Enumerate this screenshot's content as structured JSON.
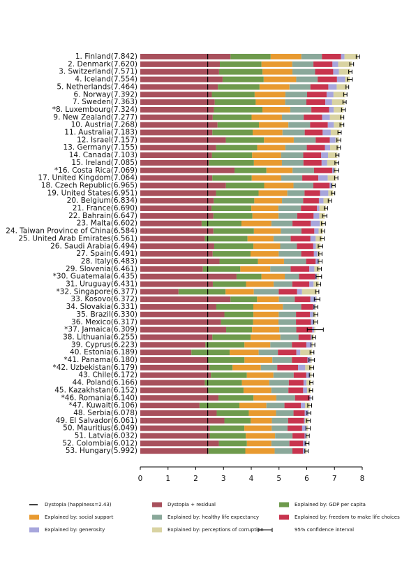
{
  "chart_data": {
    "type": "stacked-barh",
    "categories": [
      "1. Finland(7.842)",
      "2. Denmark(7.620)",
      "3. Switzerland(7.571)",
      "4. Iceland(7.554)",
      "5. Netherlands(7.464)",
      "6. Norway(7.392)",
      "7. Sweden(7.363)",
      "*8. Luxembourg(7.324)",
      "9. New Zealand(7.277)",
      "10. Austria(7.268)",
      "11. Australia(7.183)",
      "12. Israel(7.157)",
      "13. Germany(7.155)",
      "14. Canada(7.103)",
      "15. Ireland(7.085)",
      "*16. Costa Rica(7.069)",
      "17. United Kingdom(7.064)",
      "18. Czech Republic(6.965)",
      "19. United States(6.951)",
      "20. Belgium(6.834)",
      "21. France(6.690)",
      "22. Bahrain(6.647)",
      "23. Malta(6.602)",
      "24. Taiwan Province of China(6.584)",
      "25. United Arab Emirates(6.561)",
      "26. Saudi Arabia(6.494)",
      "27. Spain(6.491)",
      "28. Italy(6.483)",
      "29. Slovenia(6.461)",
      "*30. Guatemala(6.435)",
      "31. Uruguay(6.431)",
      "*32. Singapore(6.377)",
      "33. Kosovo(6.372)",
      "34. Slovakia(6.331)",
      "35. Brazil(6.330)",
      "36. Mexico(6.317)",
      "*37. Jamaica(6.309)",
      "38. Lithuania(6.255)",
      "39. Cyprus(6.223)",
      "40. Estonia(6.189)",
      "*41. Panama(6.180)",
      "*42. Uzbekistan(6.179)",
      "43. Chile(6.172)",
      "44. Poland(6.166)",
      "45. Kazakhstan(6.152)",
      "*46. Romania(6.140)",
      "*47. Kuwait(6.106)",
      "48. Serbia(6.078)",
      "49. El Salvador(6.061)",
      "50. Mauritius(6.049)",
      "51. Latvia(6.032)",
      "52. Colombia(6.012)",
      "53. Hungary(5.992)"
    ],
    "series": [
      {
        "name": "Dystopia + residual",
        "color": "#a8505c",
        "values": [
          3.253,
          2.868,
          2.84,
          2.967,
          2.798,
          2.58,
          2.683,
          2.652,
          2.612,
          2.785,
          2.598,
          3.083,
          2.735,
          2.585,
          2.468,
          3.397,
          2.596,
          3.089,
          2.731,
          2.647,
          2.568,
          2.636,
          2.212,
          2.634,
          2.324,
          2.665,
          2.61,
          2.855,
          2.257,
          3.47,
          2.615,
          1.379,
          3.252,
          2.741,
          3.032,
          2.913,
          3.095,
          2.599,
          2.348,
          1.843,
          2.439,
          2.497,
          2.546,
          2.324,
          2.447,
          2.819,
          2.135,
          2.754,
          3.032,
          2.514,
          2.503,
          2.832,
          2.457
        ]
      },
      {
        "name": "Explained by: GDP per capita",
        "color": "#6e9a4c",
        "values": [
          1.446,
          1.502,
          1.566,
          1.482,
          1.501,
          1.543,
          1.478,
          1.751,
          1.4,
          1.492,
          1.453,
          1.376,
          1.48,
          1.447,
          1.629,
          1.15,
          1.423,
          1.376,
          1.533,
          1.463,
          1.435,
          1.407,
          1.435,
          1.463,
          1.543,
          1.413,
          1.364,
          1.388,
          1.349,
          0.899,
          1.196,
          1.695,
          0.957,
          1.334,
          1.046,
          1.153,
          0.935,
          1.38,
          1.406,
          1.38,
          1.317,
          0.83,
          1.296,
          1.34,
          1.275,
          1.263,
          1.438,
          1.157,
          0.95,
          1.238,
          1.299,
          1.011,
          1.329
        ]
      },
      {
        "name": "Explained by: social support",
        "color": "#e89a30",
        "values": [
          1.106,
          1.108,
          1.079,
          1.172,
          1.079,
          1.108,
          1.062,
          1.003,
          1.094,
          1.062,
          1.076,
          1.074,
          1.015,
          1.044,
          1.009,
          0.941,
          1.062,
          1.058,
          1.036,
          0.998,
          0.975,
          0.943,
          1.08,
          0.968,
          0.936,
          0.966,
          1.016,
          0.938,
          1.08,
          0.839,
          0.998,
          1.019,
          0.789,
          1.064,
          0.912,
          0.916,
          0.98,
          1.07,
          0.933,
          1.044,
          1.004,
          1.02,
          0.958,
          0.985,
          1.002,
          0.822,
          0.974,
          0.983,
          0.762,
          0.986,
          1.057,
          0.883,
          1.058
        ]
      },
      {
        "name": "Explained by: healthy life expectancy",
        "color": "#8aa89a",
        "values": [
          0.741,
          0.763,
          0.816,
          0.772,
          0.753,
          0.782,
          0.763,
          0.76,
          0.785,
          0.782,
          0.801,
          0.788,
          0.772,
          0.798,
          0.775,
          0.774,
          0.757,
          0.715,
          0.621,
          0.762,
          0.814,
          0.67,
          0.759,
          0.745,
          0.62,
          0.599,
          0.811,
          0.796,
          0.736,
          0.512,
          0.671,
          0.897,
          0.569,
          0.662,
          0.623,
          0.63,
          0.614,
          0.654,
          0.779,
          0.695,
          0.705,
          0.59,
          0.729,
          0.705,
          0.615,
          0.675,
          0.65,
          0.63,
          0.585,
          0.571,
          0.628,
          0.65,
          0.64
        ]
      },
      {
        "name": "Explained by: freedom to make life choices",
        "color": "#c8344e",
        "values": [
          0.691,
          0.686,
          0.653,
          0.698,
          0.647,
          0.703,
          0.685,
          0.639,
          0.665,
          0.64,
          0.647,
          0.509,
          0.652,
          0.648,
          0.656,
          0.661,
          0.58,
          0.588,
          0.557,
          0.569,
          0.578,
          0.592,
          0.66,
          0.463,
          0.711,
          0.593,
          0.458,
          0.345,
          0.67,
          0.582,
          0.614,
          0.664,
          0.564,
          0.43,
          0.507,
          0.538,
          0.575,
          0.44,
          0.52,
          0.665,
          0.56,
          0.749,
          0.456,
          0.531,
          0.532,
          0.522,
          0.594,
          0.403,
          0.571,
          0.525,
          0.436,
          0.493,
          0.379
        ]
      },
      {
        "name": "Explained by: generosity",
        "color": "#a7a6dc",
        "values": [
          0.124,
          0.208,
          0.204,
          0.293,
          0.302,
          0.249,
          0.244,
          0.166,
          0.276,
          0.215,
          0.291,
          0.208,
          0.19,
          0.246,
          0.201,
          0.074,
          0.34,
          0.089,
          0.3,
          0.164,
          0.088,
          0.203,
          0.326,
          0.155,
          0.189,
          0.094,
          0.128,
          0.113,
          0.183,
          0.067,
          0.152,
          0.176,
          0.217,
          0.068,
          0.106,
          0.102,
          0.07,
          0.034,
          0.195,
          0.142,
          0.112,
          0.26,
          0.137,
          0.105,
          0.143,
          0.036,
          0.148,
          0.129,
          0.036,
          0.161,
          0.072,
          0.111,
          0.073
        ]
      },
      {
        "name": "Explained by: perceptions of corruption",
        "color": "#d9d3a2",
        "values": [
          0.481,
          0.485,
          0.413,
          0.17,
          0.384,
          0.427,
          0.448,
          0.353,
          0.445,
          0.292,
          0.317,
          0.119,
          0.311,
          0.335,
          0.347,
          0.072,
          0.306,
          0.05,
          0.173,
          0.231,
          0.232,
          0.196,
          0.13,
          0.156,
          0.238,
          0.164,
          0.104,
          0.048,
          0.186,
          0.066,
          0.185,
          0.547,
          0.024,
          0.032,
          0.104,
          0.065,
          0.04,
          0.078,
          0.042,
          0.42,
          0.043,
          0.233,
          0.05,
          0.176,
          0.138,
          0.003,
          0.167,
          0.022,
          0.125,
          0.054,
          0.037,
          0.032,
          0.056
        ]
      }
    ],
    "errors": [
      0.06,
      0.07,
      0.06,
      0.09,
      0.05,
      0.06,
      0.06,
      0.07,
      0.06,
      0.07,
      0.06,
      0.07,
      0.06,
      0.06,
      0.07,
      0.08,
      0.06,
      0.06,
      0.06,
      0.06,
      0.06,
      0.08,
      0.07,
      0.06,
      0.07,
      0.08,
      0.06,
      0.07,
      0.07,
      0.1,
      0.07,
      0.06,
      0.1,
      0.07,
      0.07,
      0.07,
      0.29,
      0.06,
      0.07,
      0.07,
      0.1,
      0.07,
      0.08,
      0.06,
      0.06,
      0.07,
      0.07,
      0.07,
      0.07,
      0.08,
      0.06,
      0.07,
      0.06
    ],
    "error_label": "95% confidence interval",
    "dystopia": {
      "label": "Dystopia (happiness=2.43)",
      "value": 2.43
    },
    "xlim": [
      -0.2,
      8.4
    ],
    "xticks": [
      0,
      1,
      2,
      3,
      4,
      5,
      6,
      7,
      8
    ]
  }
}
